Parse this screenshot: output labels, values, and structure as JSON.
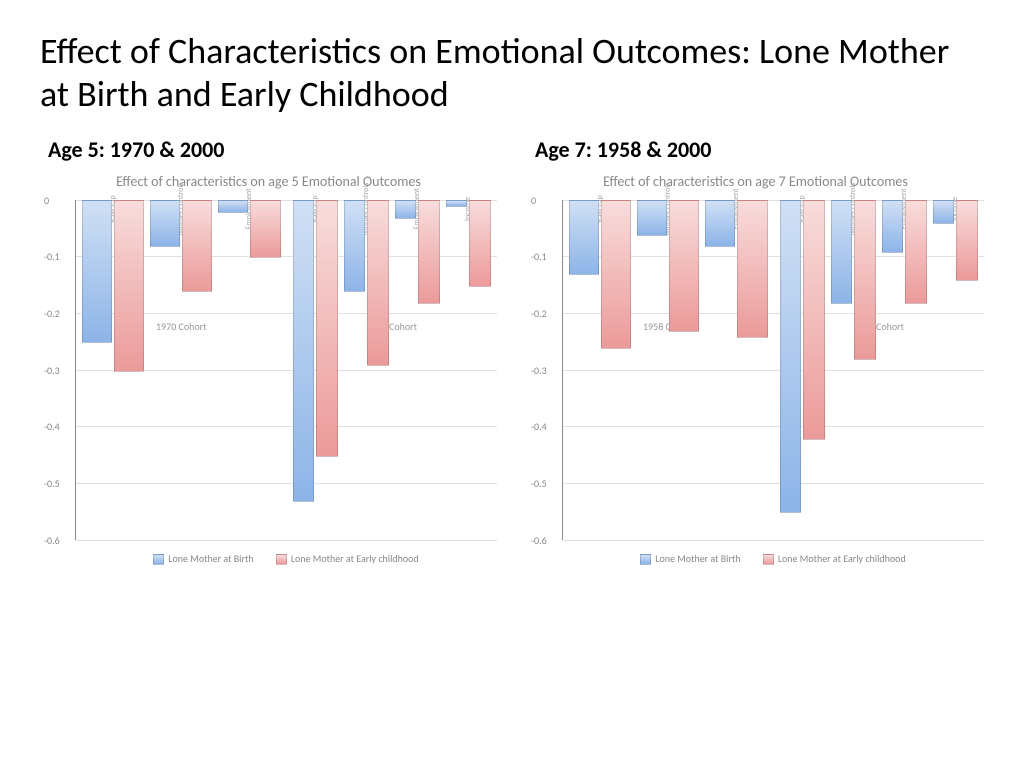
{
  "main_title": "Effect of Characteristics on Emotional Outcomes: Lone Mother at Birth and Early Childhood",
  "y_axis": {
    "min": -0.6,
    "max": 0,
    "step": 0.1,
    "ticks": [
      "0",
      "-0.1",
      "-0.2",
      "-0.3",
      "-0.4",
      "-0.5",
      "-0.6"
    ]
  },
  "categories": [
    "Raw gap",
    "Mother controls",
    "Employment",
    "Income"
  ],
  "legend": {
    "blue": "Lone Mother at Birth",
    "red": "Lone Mother at Early childhood"
  },
  "colors": {
    "blue_top": "#d0e0f5",
    "blue_bot": "#8db4e8",
    "red_top": "#f8dcdc",
    "red_bot": "#ec9a9a",
    "grid": "#e0e0e0",
    "text_muted": "#888888"
  },
  "left": {
    "heading": "Age 5: 1970 & 2000",
    "chart_title": "Effect of characteristics on age 5 Emotional Outcomes",
    "cohorts": [
      {
        "label": "1970 Cohort",
        "groups": [
          {
            "cat": "Raw gap",
            "blue": -0.25,
            "red": -0.3
          },
          {
            "cat": "Mother controls",
            "blue": -0.08,
            "red": -0.16
          },
          {
            "cat": "Employment",
            "blue": -0.02,
            "red": -0.1
          }
        ]
      },
      {
        "label": "2000 Cohort",
        "groups": [
          {
            "cat": "Raw gap",
            "blue": -0.53,
            "red": -0.45
          },
          {
            "cat": "Mother controls",
            "blue": -0.16,
            "red": -0.29
          },
          {
            "cat": "Employment",
            "blue": -0.03,
            "red": -0.18
          },
          {
            "cat": "Income",
            "blue": -0.01,
            "red": -0.15
          }
        ]
      }
    ]
  },
  "right": {
    "heading": "Age 7: 1958 & 2000",
    "chart_title": "Effect of characteristics on age 7 Emotional Outcomes",
    "cohorts": [
      {
        "label": "1958 Cohort",
        "groups": [
          {
            "cat": "Raw gap",
            "blue": -0.13,
            "red": -0.26
          },
          {
            "cat": "Mother controls",
            "blue": -0.06,
            "red": -0.23
          },
          {
            "cat": "Employment",
            "blue": -0.08,
            "red": -0.24
          }
        ]
      },
      {
        "label": "2000 Cohort",
        "groups": [
          {
            "cat": "Raw gap",
            "blue": -0.55,
            "red": -0.42
          },
          {
            "cat": "Mother controls",
            "blue": -0.18,
            "red": -0.28
          },
          {
            "cat": "Employment",
            "blue": -0.09,
            "red": -0.18
          },
          {
            "cat": "Income",
            "blue": -0.04,
            "red": -0.14
          }
        ]
      }
    ]
  }
}
